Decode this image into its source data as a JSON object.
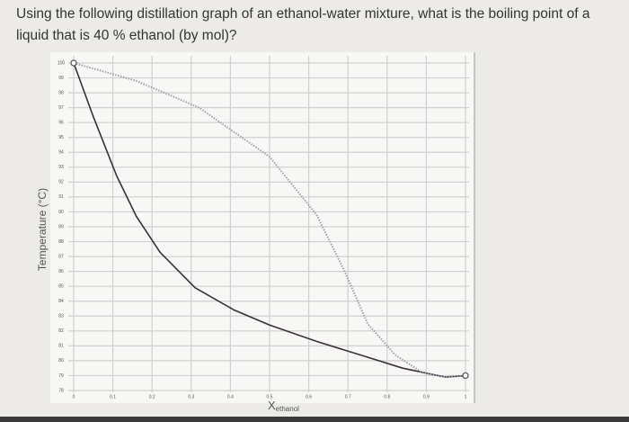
{
  "chart_data": {
    "type": "line",
    "title": "Using the following distillation graph of an ethanol-water mixture, what is the boiling point of a liquid that is 40 % ethanol (by mol)?",
    "ylabel": "Temperature (°C)",
    "xlabel": "X",
    "xlabel_subscript": "ethanol",
    "xlim": [
      0,
      1
    ],
    "xticks": [
      0,
      0.1,
      0.2,
      0.3,
      0.4,
      0.5,
      0.6,
      0.7,
      0.8,
      0.9,
      1
    ],
    "ylim": [
      78,
      100
    ],
    "yticks": [
      78,
      79,
      80,
      81,
      82,
      83,
      84,
      85,
      86,
      87,
      88,
      89,
      90,
      91,
      92,
      93,
      94,
      95,
      96,
      97,
      98,
      99,
      100
    ],
    "grid": true,
    "series": [
      {
        "color": "#3b2f3c",
        "style": "solid",
        "x": [
          0,
          0.05,
          0.11,
          0.16,
          0.22,
          0.31,
          0.41,
          0.5,
          0.62,
          0.73,
          0.84,
          0.93,
          0.95,
          1
        ],
        "values": [
          100,
          96.4,
          92.4,
          89.7,
          87.3,
          84.9,
          83.4,
          82.4,
          81.3,
          80.4,
          79.5,
          79.0,
          78.9,
          79.0
        ]
      },
      {
        "color": "#9aa3a6",
        "style": "dotted",
        "x": [
          0,
          0.16,
          0.32,
          0.5,
          0.62,
          0.69,
          0.75,
          0.82,
          0.89,
          0.95,
          1
        ],
        "values": [
          100,
          98.8,
          97.0,
          93.7,
          89.8,
          86.1,
          82.5,
          80.4,
          79.2,
          78.9,
          79.0
        ]
      }
    ]
  }
}
